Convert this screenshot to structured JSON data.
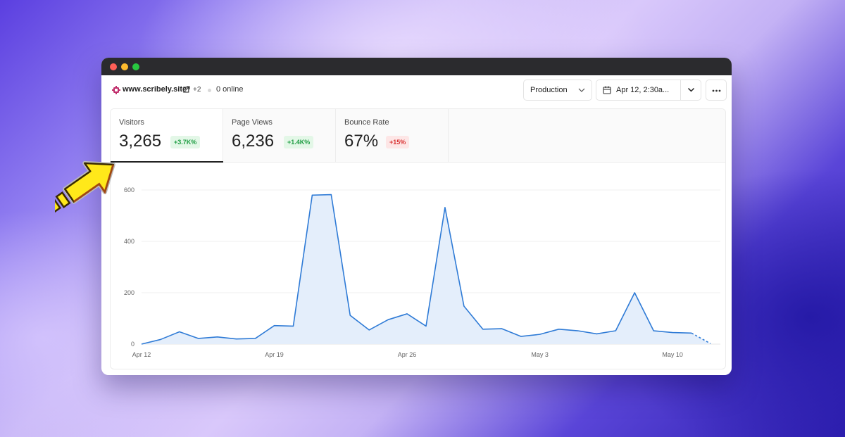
{
  "header": {
    "site_name": "www.scribely.site",
    "extra_sites": "+2",
    "online": "0 online",
    "environment": "Production",
    "date_range": "Apr 12, 2:30a..."
  },
  "metrics": [
    {
      "label": "Visitors",
      "value": "3,265",
      "change": "+3.7K%",
      "trend": "up"
    },
    {
      "label": "Page Views",
      "value": "6,236",
      "change": "+1.4K%",
      "trend": "up"
    },
    {
      "label": "Bounce Rate",
      "value": "67%",
      "change": "+15%",
      "trend": "down"
    }
  ],
  "icons": {
    "site": "logo-icon",
    "external": "external-link-icon",
    "calendar": "calendar-icon",
    "chevron": "chevron-down-icon",
    "more": "more-icon"
  },
  "colors": {
    "line": "#2f7bd6",
    "fill": "#e4eefb",
    "positive": "#1f9d43",
    "negative": "#d83333"
  },
  "chart_data": {
    "type": "area",
    "ylim": [
      0,
      600
    ],
    "yticks": [
      0,
      200,
      400,
      600
    ],
    "xtick_labels": [
      "Apr 12",
      "Apr 19",
      "Apr 26",
      "May 3",
      "May 10"
    ],
    "xtick_index": [
      0,
      7,
      14,
      21,
      28
    ],
    "x": [
      "Apr 12",
      "Apr 13",
      "Apr 14",
      "Apr 15",
      "Apr 16",
      "Apr 17",
      "Apr 18",
      "Apr 19",
      "Apr 20",
      "Apr 21",
      "Apr 22",
      "Apr 23",
      "Apr 24",
      "Apr 25",
      "Apr 26",
      "Apr 27",
      "Apr 28",
      "Apr 29",
      "Apr 30",
      "May 1",
      "May 2",
      "May 3",
      "May 4",
      "May 5",
      "May 6",
      "May 7",
      "May 8",
      "May 9",
      "May 10",
      "May 11",
      "May 12"
    ],
    "series": [
      {
        "values": [
          0,
          18,
          48,
          22,
          28,
          20,
          22,
          72,
          70,
          580,
          582,
          112,
          55,
          95,
          118,
          70,
          532,
          148,
          58,
          60,
          30,
          38,
          58,
          52,
          40,
          52,
          200,
          52,
          45,
          43,
          2
        ]
      }
    ],
    "dashed_from_index": 29,
    "grid": true
  }
}
